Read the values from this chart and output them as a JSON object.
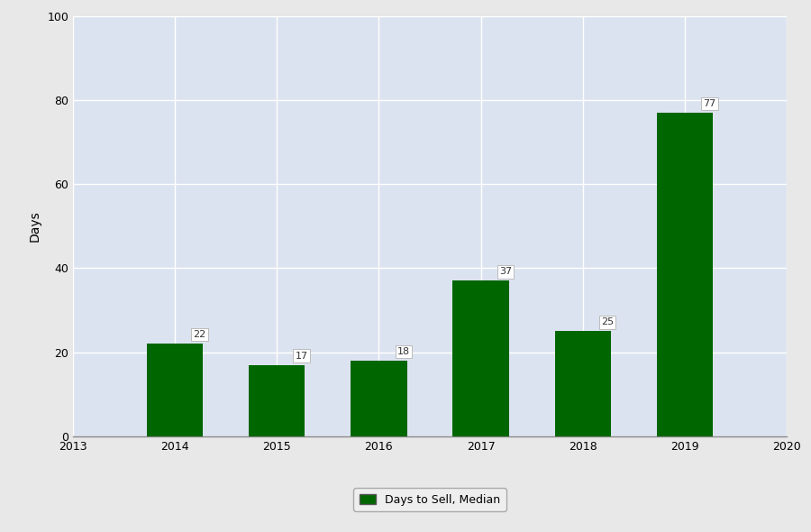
{
  "years": [
    2014,
    2015,
    2016,
    2017,
    2018,
    2019
  ],
  "values": [
    22,
    17,
    18,
    37,
    25,
    77
  ],
  "bar_color": "#006600",
  "bar_width": 0.55,
  "xlim": [
    2013,
    2020
  ],
  "ylim": [
    0,
    100
  ],
  "yticks": [
    0,
    20,
    40,
    60,
    80,
    100
  ],
  "xticks": [
    2013,
    2014,
    2015,
    2016,
    2017,
    2018,
    2019,
    2020
  ],
  "ylabel": "Days",
  "xlabel": "",
  "plot_bg_color": "#dce3f0",
  "outer_bg_color": "#e8e8e8",
  "legend_label": "Days to Sell, Median",
  "grid_color": "#ffffff",
  "label_fontsize": 9,
  "annotation_fontsize": 8
}
